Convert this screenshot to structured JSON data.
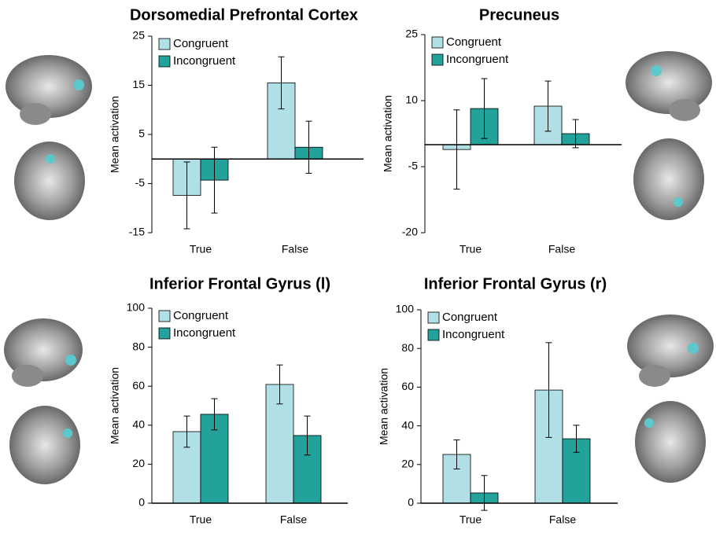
{
  "chart_data": [
    {
      "type": "bar",
      "title": "Dorsomedial Prefrontal Cortex",
      "ylabel": "Mean activation",
      "categories": [
        "True",
        "False"
      ],
      "series": [
        {
          "name": "Congruent",
          "color": "#b0e0e6",
          "values": [
            -7.4,
            15.5
          ],
          "errors": [
            6.8,
            5.3
          ]
        },
        {
          "name": "Incongruent",
          "color": "#22a29b",
          "values": [
            -4.3,
            2.4
          ],
          "errors": [
            6.7,
            5.3
          ]
        }
      ],
      "ylim": [
        -15,
        25
      ],
      "yticks": [
        -15,
        -5,
        5,
        15,
        25
      ]
    },
    {
      "type": "bar",
      "title": "Precuneus",
      "ylabel": "Mean activation",
      "categories": [
        "True",
        "False"
      ],
      "series": [
        {
          "name": "Congruent",
          "color": "#b0e0e6",
          "values": [
            -1.1,
            8.75
          ],
          "errors": [
            9.0,
            5.7
          ]
        },
        {
          "name": "Incongruent",
          "color": "#22a29b",
          "values": [
            8.2,
            2.5
          ],
          "errors": [
            6.8,
            3.2
          ]
        }
      ],
      "ylim": [
        -20,
        25
      ],
      "yticks": [
        -20,
        -5,
        10,
        25
      ]
    },
    {
      "type": "bar",
      "title": "Inferior Frontal Gyrus (l)",
      "ylabel": "Mean activation",
      "categories": [
        "True",
        "False"
      ],
      "series": [
        {
          "name": "Congruent",
          "color": "#b0e0e6",
          "values": [
            36.7,
            60.9
          ],
          "errors": [
            8,
            10
          ]
        },
        {
          "name": "Incongruent",
          "color": "#22a29b",
          "values": [
            45.6,
            34.7
          ],
          "errors": [
            8,
            10
          ]
        }
      ],
      "ylim": [
        0,
        100
      ],
      "yticks": [
        0,
        20,
        40,
        60,
        80,
        100
      ]
    },
    {
      "type": "bar",
      "title": "Inferior Frontal Gyrus (r)",
      "ylabel": "Mean activation",
      "categories": [
        "True",
        "False"
      ],
      "series": [
        {
          "name": "Congruent",
          "color": "#b0e0e6",
          "values": [
            25.2,
            58.5
          ],
          "errors": [
            7.5,
            24.5
          ]
        },
        {
          "name": "Incongruent",
          "color": "#22a29b",
          "values": [
            5.3,
            33.3
          ],
          "errors": [
            9,
            7
          ]
        }
      ],
      "ylim": [
        0,
        100
      ],
      "yticks": [
        0,
        20,
        40,
        60,
        80,
        100
      ]
    }
  ]
}
